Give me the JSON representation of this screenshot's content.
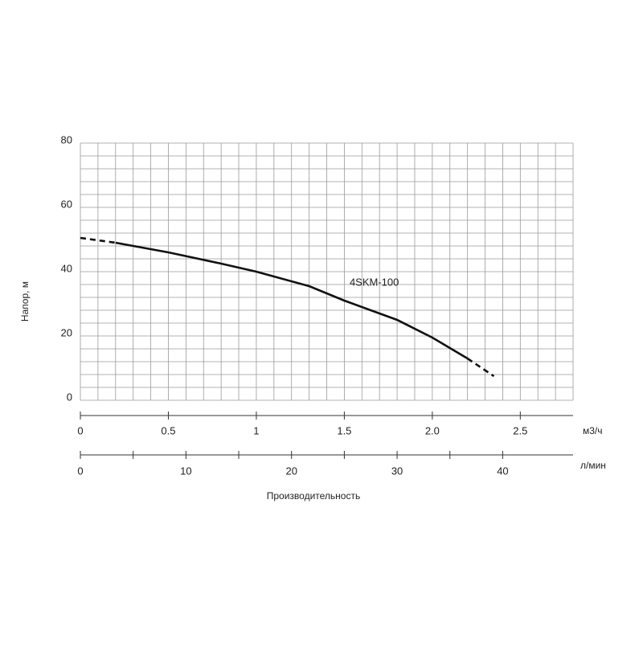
{
  "chart_data": {
    "type": "line",
    "ylabel": "Напор, м",
    "xlabel": "Производительность",
    "x_unit": "м3/ч",
    "x2_unit": "л/мин",
    "xlim": [
      0,
      2.8
    ],
    "ylim": [
      0,
      80
    ],
    "x2lim": [
      0,
      46.667
    ],
    "yticks": [
      0,
      20,
      40,
      60,
      80
    ],
    "xticks": [
      0,
      0.5,
      1,
      1.5,
      {
        "value": 2,
        "label": "2.0"
      },
      2.5
    ],
    "x2ticks": [
      0,
      10,
      20,
      30,
      40
    ],
    "x2minor_ticks": [
      5,
      15,
      25,
      35
    ],
    "grid": true,
    "grid_step": {
      "x": 0.1,
      "y": 4
    },
    "color": "#111111",
    "series": [
      {
        "style": "dashed",
        "x": [
          0,
          0.2
        ],
        "values": [
          50.5,
          49
        ]
      },
      {
        "name": "4SKM-100",
        "style": "solid",
        "x": [
          0.2,
          0.5,
          0.8,
          1.0,
          1.3,
          1.5,
          1.8,
          2.0,
          2.2
        ],
        "values": [
          49,
          46,
          42.5,
          40,
          35.5,
          31,
          25,
          19.5,
          13
        ]
      },
      {
        "style": "dashed",
        "x": [
          2.2,
          2.35
        ],
        "values": [
          13,
          7.5
        ]
      }
    ]
  }
}
